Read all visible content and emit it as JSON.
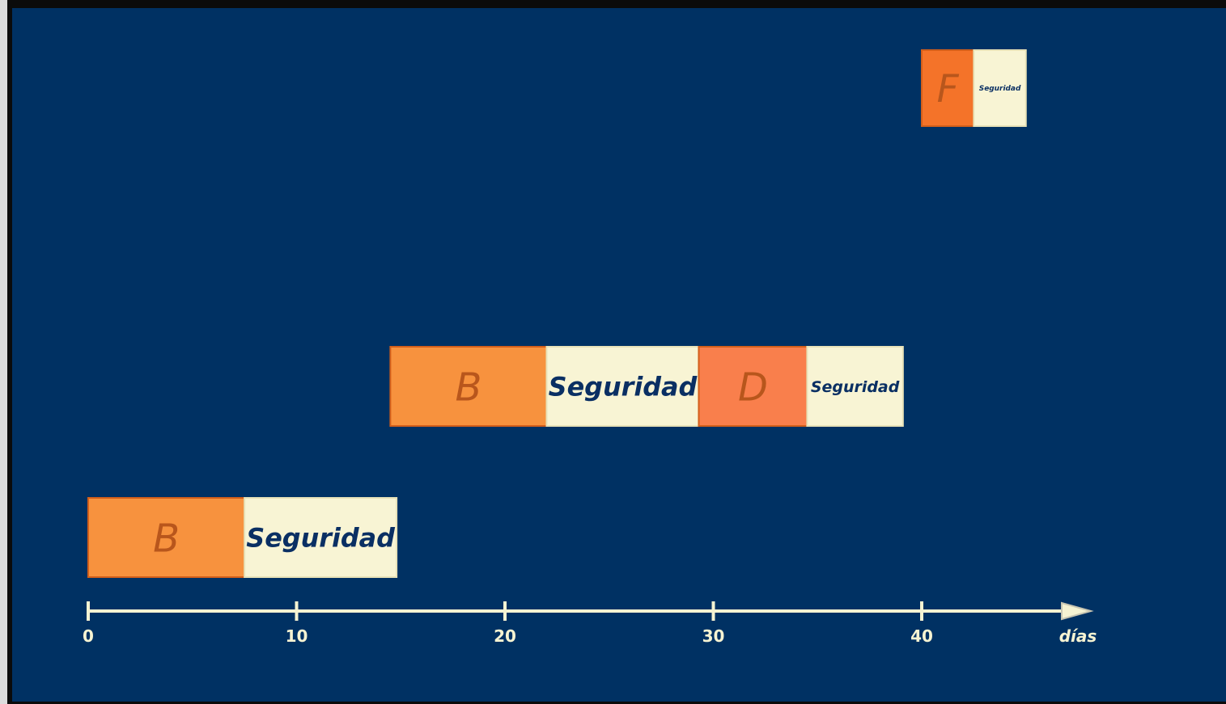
{
  "axis": {
    "unit": "días",
    "ticks": [
      0,
      10,
      20,
      30,
      40
    ],
    "tick_labels": [
      "0",
      "10",
      "20",
      "30",
      "40"
    ],
    "max": 47
  },
  "colors": {
    "background": "#003163",
    "axis": "#f6f3d2",
    "task_orange": "#f7923e",
    "task_red_orange": "#f97f4c",
    "task_deep_orange": "#f47329",
    "buffer": "#f8f4d4",
    "buffer_text": "#0a2f63",
    "task_letter": "#b8561c"
  },
  "rows": [
    {
      "blocks": [
        {
          "kind": "task",
          "label": "F",
          "start": 40,
          "end": 42.5,
          "color": "task_deep_orange"
        },
        {
          "kind": "buffer",
          "label": "Seguridad",
          "start": 42.5,
          "end": 45
        }
      ]
    },
    {
      "blocks": [
        {
          "kind": "task",
          "label": "B",
          "start": 14.5,
          "end": 22,
          "color": "task_orange"
        },
        {
          "kind": "buffer",
          "label": "Seguridad",
          "start": 22,
          "end": 29.3
        },
        {
          "kind": "task",
          "label": "D",
          "start": 29.3,
          "end": 34.5,
          "color": "task_red_orange"
        },
        {
          "kind": "buffer",
          "label": "Seguridad",
          "start": 34.5,
          "end": 39.1
        }
      ]
    },
    {
      "blocks": [
        {
          "kind": "task",
          "label": "B",
          "start": 0,
          "end": 7.5,
          "color": "task_orange"
        },
        {
          "kind": "buffer",
          "label": "Seguridad",
          "start": 7.5,
          "end": 14.8
        }
      ]
    }
  ]
}
